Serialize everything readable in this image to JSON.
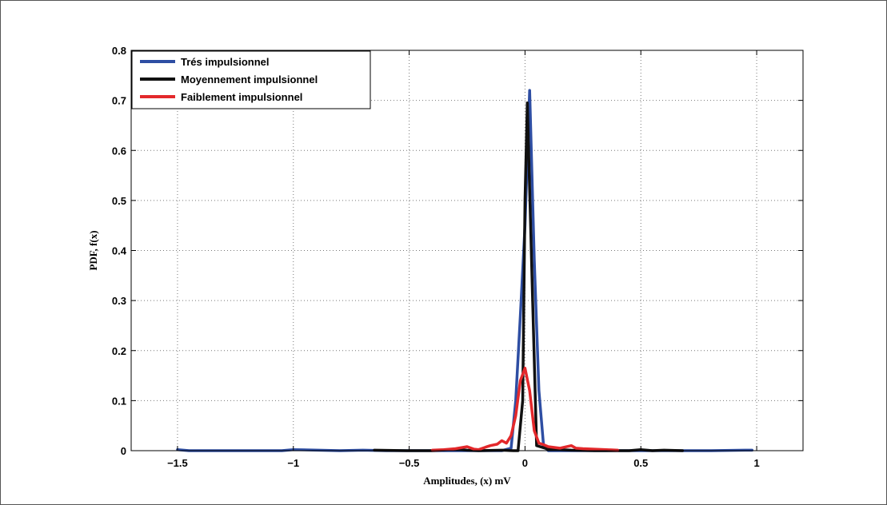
{
  "chart_data": {
    "type": "line",
    "title": "",
    "xlabel": "Amplitudes, (x) mV",
    "ylabel": "PDF, f(x)",
    "xlim": [
      -1.7,
      1.2
    ],
    "ylim": [
      0,
      0.8
    ],
    "xticks": [
      -1.5,
      -1,
      -0.5,
      0,
      0.5,
      1
    ],
    "xtick_labels": [
      "−1.5",
      "−1",
      "−0.5",
      "0",
      "0.5",
      "1"
    ],
    "yticks": [
      0,
      0.1,
      0.2,
      0.3,
      0.4,
      0.5,
      0.6,
      0.7,
      0.8
    ],
    "ytick_labels": [
      "0",
      "0.1",
      "0.2",
      "0.3",
      "0.4",
      "0.5",
      "0.6",
      "0.7",
      "0.8"
    ],
    "grid": true,
    "legend_position": "top-left",
    "series": [
      {
        "name": "Trés impulsionnel",
        "color": "#2e4ea3",
        "x": [
          -1.5,
          -1.45,
          -1.2,
          -1.05,
          -1.0,
          -0.8,
          -0.7,
          -0.6,
          -0.4,
          -0.2,
          -0.1,
          -0.06,
          -0.04,
          -0.02,
          0.0,
          0.02,
          0.04,
          0.06,
          0.08,
          0.1,
          0.2,
          0.4,
          0.6,
          0.8,
          0.95,
          0.98
        ],
        "y": [
          0.002,
          0.0,
          0.0,
          0.0,
          0.002,
          0.0,
          0.001,
          0.0,
          0.0,
          0.0,
          0.0,
          0.005,
          0.1,
          0.27,
          0.45,
          0.72,
          0.38,
          0.12,
          0.01,
          0.0,
          0.0,
          0.0,
          0.0,
          0.0,
          0.001,
          0.001
        ]
      },
      {
        "name": "Moyennement impulsionnel",
        "color": "#111111",
        "x": [
          -0.65,
          -0.5,
          -0.4,
          -0.3,
          -0.25,
          -0.2,
          -0.1,
          -0.05,
          -0.03,
          -0.01,
          0.0,
          0.01,
          0.03,
          0.05,
          0.1,
          0.2,
          0.3,
          0.45,
          0.5,
          0.55,
          0.6,
          0.68
        ],
        "y": [
          0.001,
          0.0,
          0.0,
          0.003,
          0.001,
          0.0,
          0.001,
          0.0,
          0.0,
          0.1,
          0.5,
          0.695,
          0.35,
          0.01,
          0.003,
          0.001,
          0.0,
          0.0,
          0.002,
          0.0,
          0.001,
          0.0
        ]
      },
      {
        "name": "Faiblement impulsionnel",
        "color": "#e3282b",
        "x": [
          -0.4,
          -0.35,
          -0.3,
          -0.25,
          -0.22,
          -0.2,
          -0.17,
          -0.15,
          -0.12,
          -0.1,
          -0.08,
          -0.06,
          -0.04,
          -0.02,
          0.0,
          0.02,
          0.04,
          0.06,
          0.08,
          0.1,
          0.15,
          0.2,
          0.22,
          0.25,
          0.3,
          0.35,
          0.4
        ],
        "y": [
          0.001,
          0.002,
          0.004,
          0.008,
          0.003,
          0.002,
          0.007,
          0.01,
          0.013,
          0.02,
          0.015,
          0.03,
          0.07,
          0.14,
          0.165,
          0.12,
          0.04,
          0.015,
          0.012,
          0.008,
          0.005,
          0.01,
          0.005,
          0.004,
          0.003,
          0.002,
          0.001
        ]
      }
    ]
  }
}
